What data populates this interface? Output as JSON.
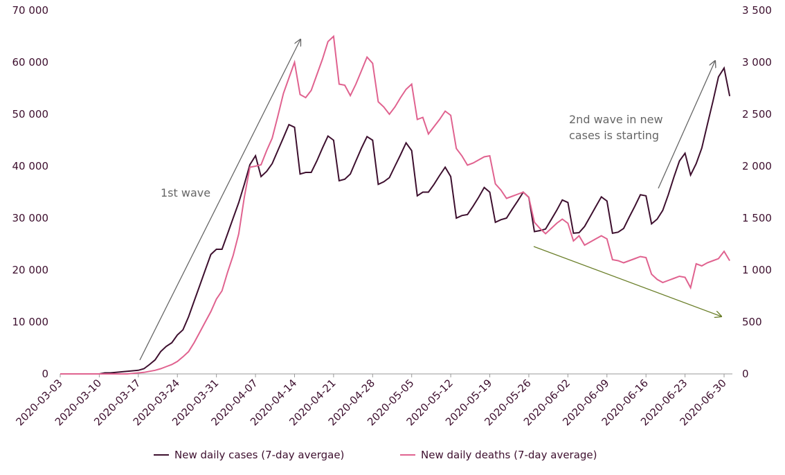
{
  "chart_data": {
    "type": "line",
    "categories": [
      "2020-03-03",
      null,
      null,
      null,
      null,
      null,
      null,
      "2020-03-10",
      null,
      null,
      null,
      null,
      null,
      null,
      "2020-03-17",
      null,
      null,
      null,
      null,
      null,
      null,
      "2020-03-24",
      null,
      null,
      null,
      null,
      null,
      null,
      "2020-03-31",
      null,
      null,
      null,
      null,
      null,
      null,
      "2020-04-07",
      null,
      null,
      null,
      null,
      null,
      null,
      "2020-04-14",
      null,
      null,
      null,
      null,
      null,
      null,
      "2020-04-21",
      null,
      null,
      null,
      null,
      null,
      null,
      "2020-04-28",
      null,
      null,
      null,
      null,
      null,
      null,
      "2020-05-05",
      null,
      null,
      null,
      null,
      null,
      null,
      "2020-05-12",
      null,
      null,
      null,
      null,
      null,
      null,
      "2020-05-19",
      null,
      null,
      null,
      null,
      null,
      null,
      "2020-05-26",
      null,
      null,
      null,
      null,
      null,
      null,
      "2020-06-02",
      null,
      null,
      null,
      null,
      null,
      null,
      "2020-06-09",
      null,
      null,
      null,
      null,
      null,
      null,
      "2020-06-16",
      null,
      null,
      null,
      null,
      null,
      null,
      "2020-06-23",
      null,
      null,
      null,
      null,
      null,
      null,
      "2020-06-30",
      null
    ],
    "series": [
      {
        "name": "New daily cases (7-day avergae)",
        "color": "#3d0f2e",
        "values": [
          0,
          0,
          0,
          0,
          0,
          0,
          0,
          0,
          200,
          200,
          300,
          400,
          500,
          600,
          700,
          1000,
          1800,
          2700,
          4300,
          5300,
          6000,
          7500,
          8500,
          11000,
          14000,
          17000,
          20000,
          23000,
          24000,
          24000,
          27000,
          30000,
          33000,
          36500,
          40300,
          42000,
          38000,
          39000,
          40500,
          43000,
          45500,
          48000,
          47500,
          38500,
          38800,
          38800,
          41000,
          43500,
          45800,
          45000,
          37200,
          37500,
          38500,
          41000,
          43500,
          45700,
          45000,
          36500,
          37000,
          37800,
          40000,
          42200,
          44500,
          43000,
          34300,
          35000,
          35000,
          36500,
          38200,
          39800,
          38000,
          30000,
          30500,
          30700,
          32300,
          34000,
          35900,
          35000,
          29200,
          29700,
          30000,
          31700,
          33300,
          35000,
          34000,
          27400,
          27600,
          27900,
          29700,
          31500,
          33500,
          33000,
          27100,
          27200,
          28400,
          30300,
          32200,
          34100,
          33300,
          27100,
          27300,
          28000,
          30200,
          32300,
          34500,
          34300,
          28900,
          29800,
          31500,
          34500,
          37900,
          41000,
          42500,
          38300,
          40500,
          43500,
          48000,
          52500,
          57200,
          58900,
          53500
        ]
      },
      {
        "name": "New daily deaths (7-day average)",
        "color": "#e0628f",
        "axis": "y2",
        "values": [
          0,
          0,
          0,
          0,
          0,
          0,
          0,
          0,
          0,
          0,
          0,
          0,
          0,
          5,
          10,
          15,
          25,
          35,
          50,
          70,
          90,
          120,
          165,
          215,
          300,
          400,
          500,
          600,
          720,
          800,
          980,
          1140,
          1350,
          1700,
          1990,
          2000,
          2013,
          2150,
          2270,
          2480,
          2700,
          2850,
          3000,
          2690,
          2660,
          2730,
          2880,
          3030,
          3200,
          3250,
          2790,
          2780,
          2680,
          2790,
          2920,
          3050,
          2990,
          2620,
          2570,
          2500,
          2570,
          2660,
          2740,
          2790,
          2450,
          2470,
          2310,
          2380,
          2450,
          2530,
          2490,
          2170,
          2100,
          2010,
          2030,
          2060,
          2090,
          2100,
          1830,
          1770,
          1690,
          1710,
          1730,
          1750,
          1700,
          1460,
          1400,
          1350,
          1400,
          1450,
          1490,
          1450,
          1280,
          1330,
          1240,
          1270,
          1300,
          1330,
          1300,
          1100,
          1090,
          1070,
          1090,
          1110,
          1130,
          1120,
          960,
          910,
          880,
          900,
          920,
          940,
          930,
          830,
          1060,
          1040,
          1070,
          1090,
          1110,
          1180,
          1090
        ]
      }
    ],
    "ylim": [
      0,
      70000
    ],
    "yticks": [
      0,
      {
        "value": 10000,
        "label": "10 000"
      },
      {
        "value": 20000,
        "label": "20 000"
      },
      {
        "value": 30000,
        "label": "30 000"
      },
      {
        "value": 40000,
        "label": "40 000"
      },
      {
        "value": 50000,
        "label": "50 000"
      },
      {
        "value": 60000,
        "label": "60 000"
      },
      {
        "value": 70000,
        "label": "70 000"
      }
    ],
    "y2lim": [
      0,
      3500
    ],
    "y2ticks": [
      0,
      500,
      {
        "value": 1000,
        "label": "1 000"
      },
      {
        "value": 1500,
        "label": "1 500"
      },
      {
        "value": 2000,
        "label": "2 000"
      },
      {
        "value": 2500,
        "label": "2 500"
      },
      {
        "value": 3000,
        "label": "3 000"
      },
      {
        "value": 3500,
        "label": "3 500"
      }
    ],
    "grid": false,
    "legend": "bottom",
    "annotations": [
      "1st wave",
      [
        "2nd wave in new",
        "cases is starting"
      ]
    ]
  }
}
